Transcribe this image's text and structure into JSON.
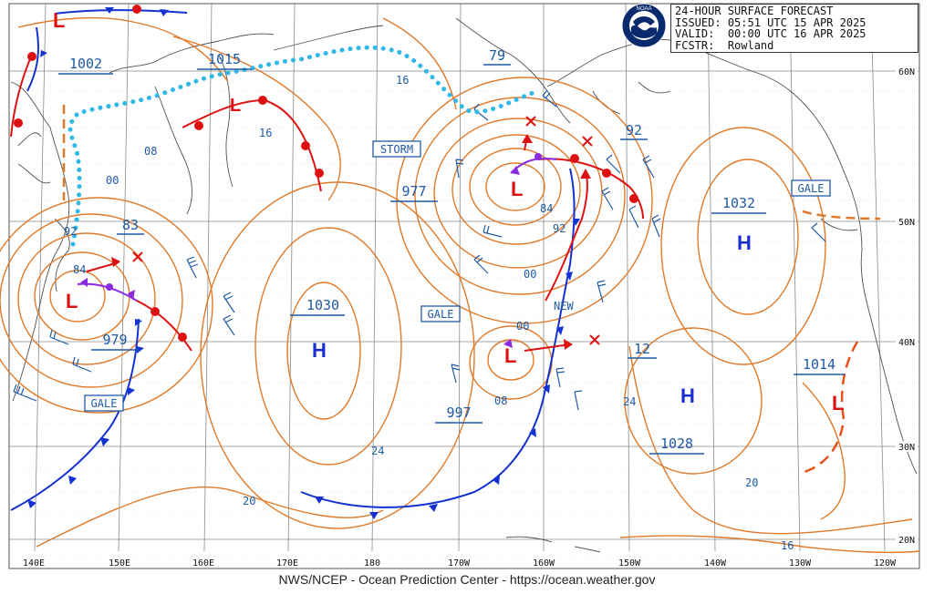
{
  "header": {
    "product": "24-HOUR SURFACE FORECAST",
    "issued_label": "ISSUED:",
    "issued": "05:51 UTC 15 APR 2025",
    "valid_label": "VALID:",
    "valid": "00:00 UTC 16 APR 2025",
    "forecaster_label": "FCSTR:",
    "forecaster": "Rowland"
  },
  "logo": {
    "text": "NOAA",
    "icon": "noaa-logo"
  },
  "footer": {
    "credit": "NWS/NCEP - Ocean Prediction Center - https://ocean.weather.gov"
  },
  "axes": {
    "longitudes": [
      "140E",
      "150E",
      "160E",
      "170E",
      "180",
      "170W",
      "160W",
      "150W",
      "140W",
      "130W",
      "120W"
    ],
    "latitudes": [
      "60N",
      "50N",
      "40N",
      "30N",
      "20N"
    ]
  },
  "pressure_centers": [
    {
      "type": "H",
      "value": "1030"
    },
    {
      "type": "H",
      "value": "1032"
    },
    {
      "type": "H",
      "value": "1028"
    },
    {
      "type": "L",
      "value": "1002"
    },
    {
      "type": "L",
      "value": "1015"
    },
    {
      "type": "L",
      "value": "977"
    },
    {
      "type": "L",
      "value": "979"
    },
    {
      "type": "L",
      "value": "997"
    },
    {
      "type": "L",
      "value": "1014"
    }
  ],
  "short_values": [
    "79",
    "92",
    "83",
    "12",
    "84",
    "92",
    "00",
    "00",
    "08",
    "24",
    "16",
    "16",
    "08",
    "00",
    "92",
    "84",
    "24",
    "20",
    "20",
    "16"
  ],
  "warnings": [
    "STORM",
    "GALE",
    "GALE",
    "GALE"
  ],
  "new_label": "NEW",
  "colors": {
    "isobar": "#e07a2a",
    "cold_front": "#1432d2",
    "warm_front": "#dd1111",
    "occluded_front": "#8a2be2",
    "stationary_moisture": "#30b8e8",
    "label_blue": "#1f5aa6",
    "high_blue": "#1a2fd0",
    "low_red": "#dd1111"
  }
}
